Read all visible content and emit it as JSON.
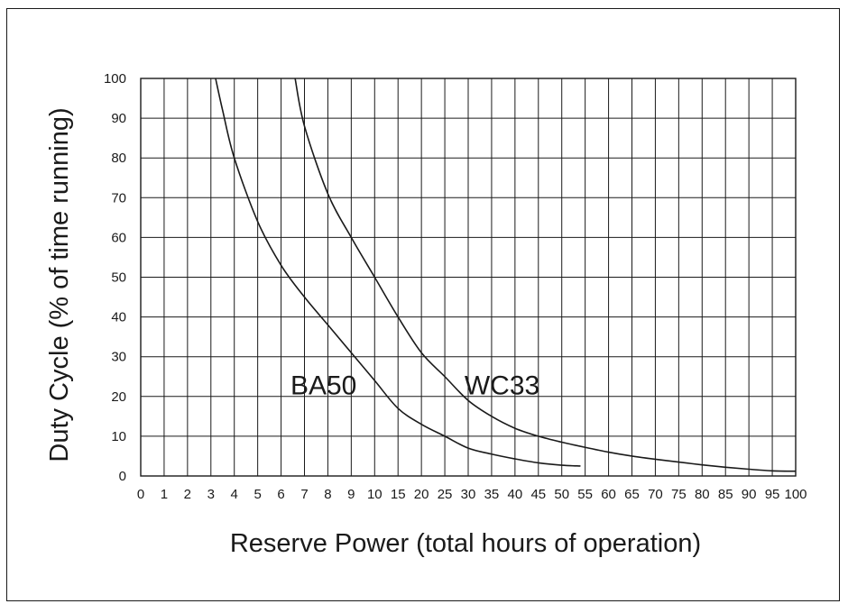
{
  "chart_data": {
    "type": "line",
    "xlabel": "Reserve Power (total hours of operation)",
    "ylabel": "Duty Cycle (% of time running)",
    "x_ticks": [
      "0",
      "1",
      "2",
      "3",
      "4",
      "5",
      "6",
      "7",
      "8",
      "9",
      "10",
      "15",
      "20",
      "25",
      "30",
      "35",
      "40",
      "45",
      "50",
      "55",
      "60",
      "65",
      "70",
      "75",
      "80",
      "85",
      "90",
      "95",
      "100"
    ],
    "x_values": [
      0,
      1,
      2,
      3,
      4,
      5,
      6,
      7,
      8,
      9,
      10,
      15,
      20,
      25,
      30,
      35,
      40,
      45,
      50,
      55,
      60,
      65,
      70,
      75,
      80,
      85,
      90,
      95,
      100
    ],
    "y_ticks": [
      0,
      10,
      20,
      30,
      40,
      50,
      60,
      70,
      80,
      90,
      100
    ],
    "ylim": [
      0,
      100
    ],
    "grid": true,
    "series": [
      {
        "name": "BA50",
        "x": [
          3.2,
          3.5,
          4,
          5,
          6,
          7,
          8,
          9,
          10,
          15,
          20,
          25,
          30,
          35,
          40,
          45,
          50,
          54
        ],
        "y": [
          100,
          92,
          80,
          64,
          53,
          45,
          38,
          31,
          24,
          17,
          13,
          10,
          7,
          5.5,
          4.3,
          3.3,
          2.7,
          2.5
        ]
      },
      {
        "name": "WC33",
        "x": [
          6.6,
          7,
          8,
          9,
          10,
          15,
          20,
          25,
          30,
          35,
          40,
          45,
          50,
          55,
          60,
          65,
          70,
          75,
          80,
          85,
          90,
          95,
          100
        ],
        "y": [
          100,
          88,
          71,
          60,
          50,
          40,
          31,
          25,
          19,
          15,
          12,
          10,
          8.5,
          7.2,
          6,
          5,
          4.2,
          3.5,
          2.8,
          2.2,
          1.7,
          1.3,
          1.2
        ]
      }
    ]
  }
}
